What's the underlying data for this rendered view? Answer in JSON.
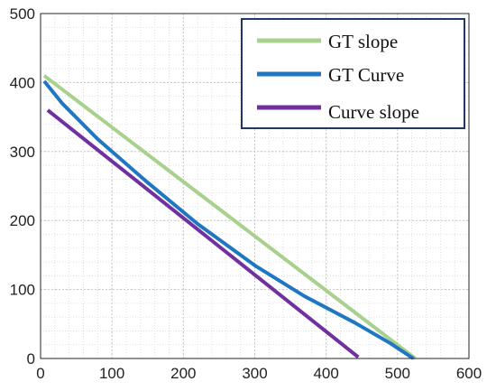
{
  "chart_data": {
    "type": "line",
    "title": "",
    "xlabel": "",
    "ylabel": "",
    "xlim": [
      0,
      600
    ],
    "ylim": [
      0,
      500
    ],
    "x_ticks": [
      0,
      100,
      200,
      300,
      400,
      500,
      600
    ],
    "y_ticks": [
      0,
      100,
      200,
      300,
      400,
      500
    ],
    "grid": true,
    "legend_position": "top-right",
    "series": [
      {
        "name": "GT slope",
        "color": "#a9d18e",
        "x": [
          5,
          525
        ],
        "y": [
          410,
          0
        ]
      },
      {
        "name": "GT Curve",
        "color": "#1f77c4",
        "x": [
          5,
          30,
          80,
          150,
          220,
          300,
          370,
          440,
          490,
          522
        ],
        "y": [
          402,
          370,
          318,
          255,
          195,
          135,
          90,
          52,
          22,
          0
        ]
      },
      {
        "name": "Curve slope",
        "color": "#7030a0",
        "x": [
          10,
          445
        ],
        "y": [
          360,
          2
        ]
      }
    ]
  }
}
